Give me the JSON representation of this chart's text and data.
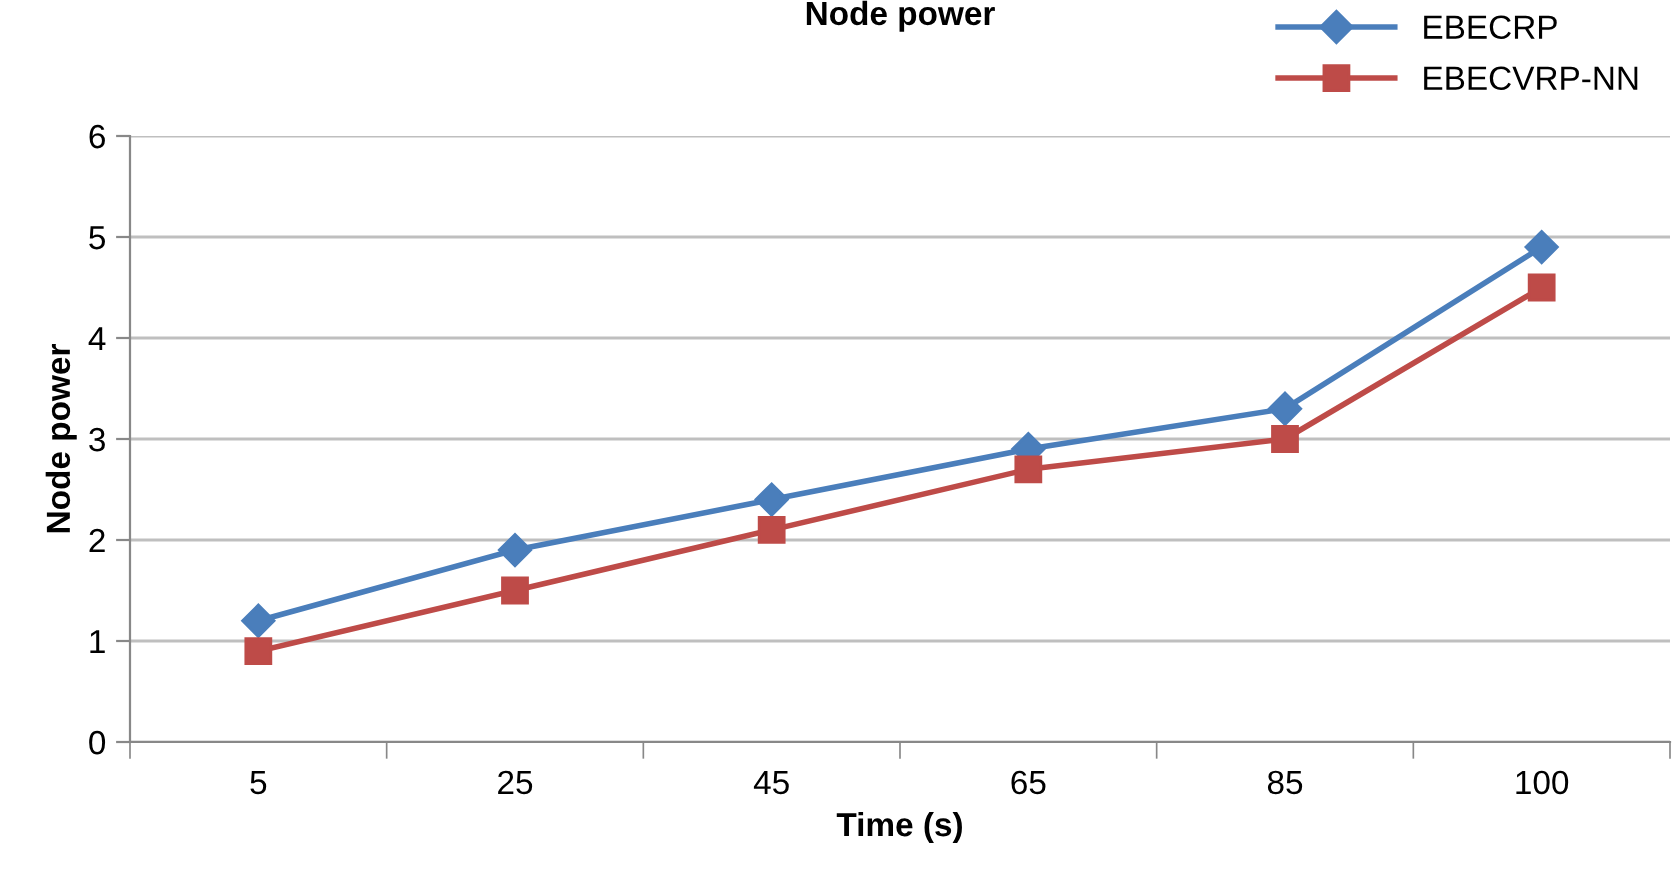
{
  "chart_data": {
    "type": "line",
    "title": "Node power",
    "xlabel": "Time (s)",
    "ylabel": "Node power",
    "categories": [
      "5",
      "25",
      "45",
      "65",
      "85",
      "100"
    ],
    "series": [
      {
        "name": "EBECRP",
        "color": "#4a7ebb",
        "marker": "diamond",
        "values": [
          1.2,
          1.9,
          2.4,
          2.9,
          3.3,
          4.9
        ]
      },
      {
        "name": "EBECVRP-NN",
        "color": "#be4b48",
        "marker": "square",
        "values": [
          0.9,
          1.5,
          2.1,
          2.7,
          3.0,
          4.5
        ]
      }
    ],
    "ylim": [
      0,
      6
    ],
    "yticks": [
      0,
      1,
      2,
      3,
      4,
      5,
      6
    ],
    "grid": "y",
    "legend": "top right"
  }
}
